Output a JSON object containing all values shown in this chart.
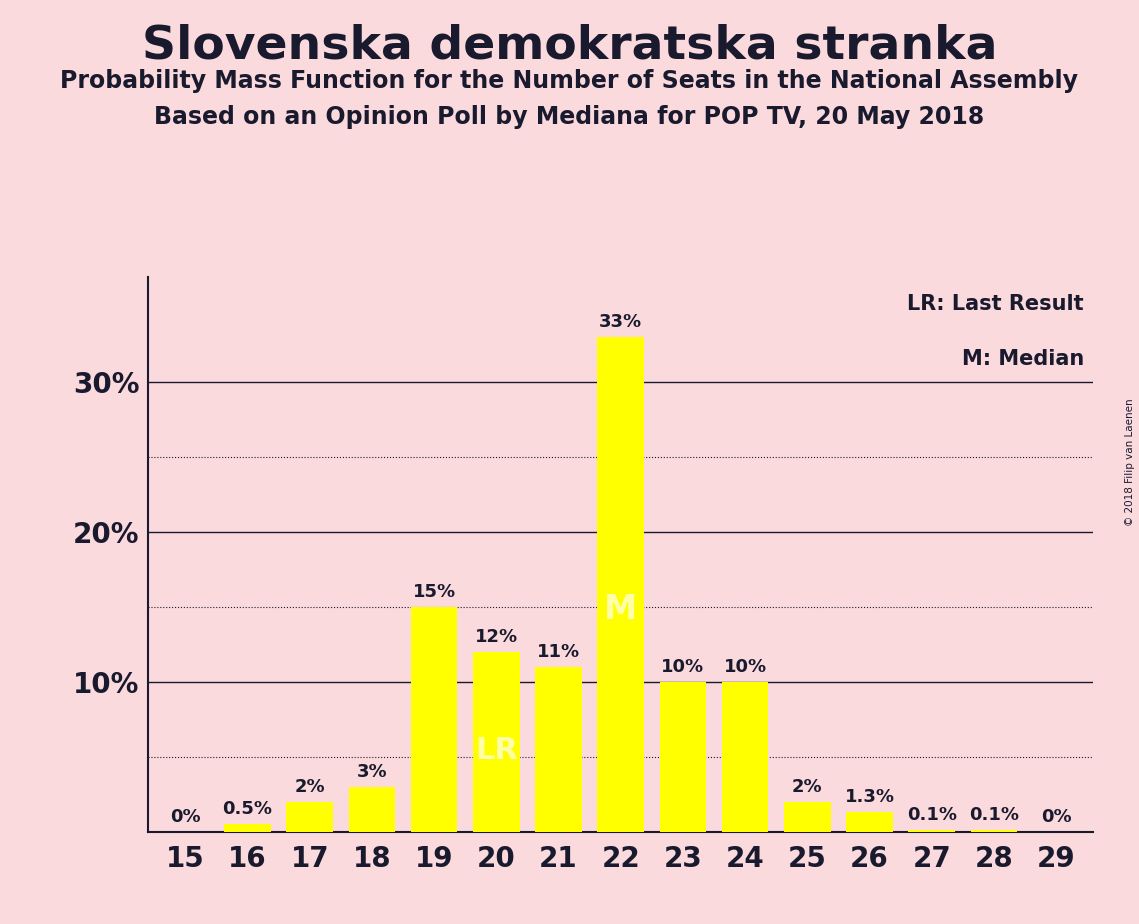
{
  "title": "Slovenska demokratska stranka",
  "subtitle1": "Probability Mass Function for the Number of Seats in the National Assembly",
  "subtitle2": "Based on an Opinion Poll by Mediana for POP TV, 20 May 2018",
  "copyright": "© 2018 Filip van Laenen",
  "categories": [
    15,
    16,
    17,
    18,
    19,
    20,
    21,
    22,
    23,
    24,
    25,
    26,
    27,
    28,
    29
  ],
  "values": [
    0.0,
    0.5,
    2.0,
    3.0,
    15.0,
    12.0,
    11.0,
    33.0,
    10.0,
    10.0,
    2.0,
    1.3,
    0.1,
    0.1,
    0.0
  ],
  "labels": [
    "0%",
    "0.5%",
    "2%",
    "3%",
    "15%",
    "12%",
    "11%",
    "33%",
    "10%",
    "10%",
    "2%",
    "1.3%",
    "0.1%",
    "0.1%",
    "0%"
  ],
  "bar_color": "#FFFF00",
  "background_color": "#FADADD",
  "text_color": "#1a1a2e",
  "title_fontsize": 34,
  "subtitle_fontsize": 17,
  "label_fontsize": 13,
  "tick_fontsize": 20,
  "ylabel_ticks": [
    "10%",
    "20%",
    "30%"
  ],
  "ylabel_vals": [
    10,
    20,
    30
  ],
  "ylim": [
    0,
    37
  ],
  "lr_seat": 20,
  "median_seat": 22,
  "legend_lr": "LR: Last Result",
  "legend_m": "M: Median",
  "dotted_lines": [
    5,
    15,
    25
  ],
  "solid_lines": [
    10,
    20,
    30
  ]
}
